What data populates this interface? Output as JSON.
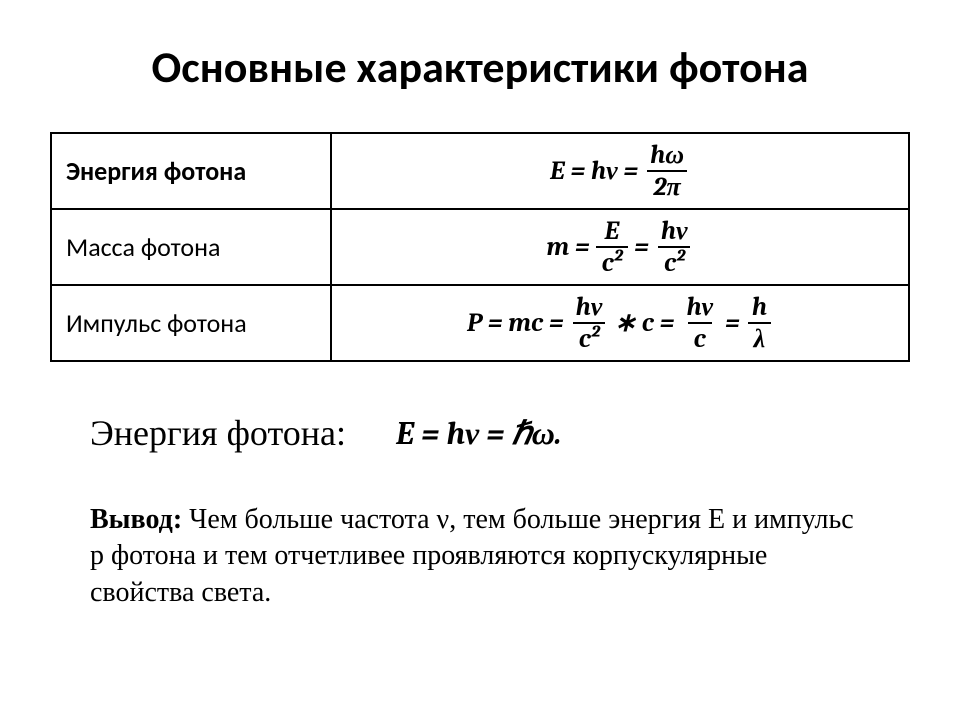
{
  "title": "Основные характеристики фотона",
  "table": {
    "rows": [
      {
        "label": "Энергия фотона",
        "label_weight": "700"
      },
      {
        "label": "Масса фотона",
        "label_weight": "400"
      },
      {
        "label": "Импульс фотона",
        "label_weight": "400"
      }
    ],
    "formulas": {
      "energy": {
        "lhs": "E = hν =",
        "num": "hω",
        "den": "2π"
      },
      "mass": {
        "lhs": "m =",
        "n1": "E",
        "d1": "c²",
        "eq": "=",
        "n2": "hν",
        "d2": "c²"
      },
      "momentum": {
        "lhs": "P = mc =",
        "n1": "hν",
        "d1": "c²",
        "mul": "∗ c =",
        "n2": "hν",
        "d2": "c",
        "eq": "=",
        "n3": "h",
        "d3": "λ"
      }
    },
    "border_color": "#000000",
    "label_fontsize": 26,
    "formula_fontsize": 26
  },
  "energy_line": {
    "label": "Энергия фотона:",
    "formula": "E = hν = ℏω."
  },
  "conclusion": {
    "lead": "Вывод:",
    "text": " Чем больше частота ν, тем больше энергия E и импульс p фотона и тем отчетливее проявляются корпускулярные свойства света."
  },
  "colors": {
    "background": "#ffffff",
    "text": "#000000"
  }
}
